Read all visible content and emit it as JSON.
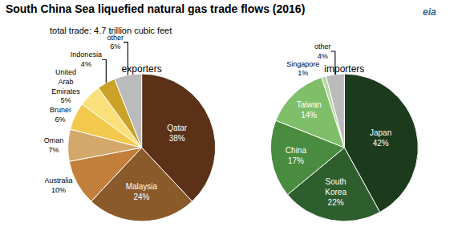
{
  "chart_data": {
    "type": "pie",
    "title": "South China Sea liquefied natural gas trade flows (2016)",
    "subtitle": "total trade: 4.7 trillion cubic feet",
    "annotations": [
      "eia"
    ],
    "series": [
      {
        "name": "exporters",
        "categories": [
          "Qatar",
          "Malaysia",
          "Australia",
          "Oman",
          "Brunei",
          "United\nArab\nEmirates",
          "Indonesia",
          "other"
        ],
        "values": [
          38,
          24,
          10,
          7,
          6,
          5,
          4,
          6
        ],
        "value_labels": [
          "38%",
          "24%",
          "10%",
          "7%",
          "6%",
          "5%",
          "4%",
          "6%"
        ],
        "colors": [
          "#5B3118",
          "#8B5A2B",
          "#C17F3B",
          "#D4A76A",
          "#F2C94C",
          "#F9E07A",
          "#C9A227",
          "#BBBBBB"
        ]
      },
      {
        "name": "importers",
        "categories": [
          "Japan",
          "South\nKorea",
          "China",
          "Taiwan",
          "Singapore",
          "other"
        ],
        "values": [
          42,
          22,
          17,
          14,
          1,
          4
        ],
        "value_labels": [
          "42%",
          "22%",
          "17%",
          "14%",
          "1%",
          "4%"
        ],
        "colors": [
          "#1C3A1C",
          "#2E5E2E",
          "#4A8C3F",
          "#80BF6A",
          "#B8D9A8",
          "#BBBBBB"
        ]
      }
    ]
  }
}
